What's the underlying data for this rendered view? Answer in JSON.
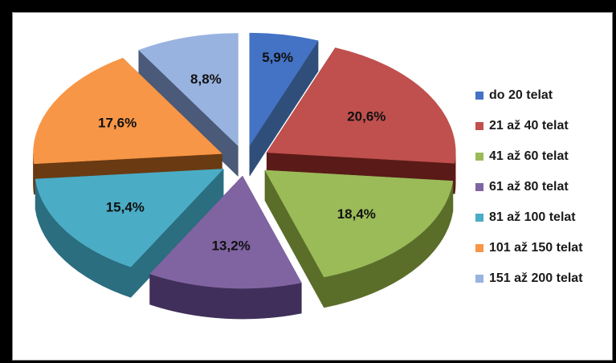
{
  "chart_data": {
    "type": "pie",
    "exploded": true,
    "three_d": true,
    "legend_position": "right",
    "categories": [
      "do 20 telat",
      "21 až 40 telat",
      "41 až 60 telat",
      "61 až 80 telat",
      "81 až 100 telat",
      "101 až 150 telat",
      "151 až 200 telat"
    ],
    "values": [
      5.9,
      20.6,
      18.4,
      13.2,
      15.4,
      17.6,
      8.8
    ],
    "data_labels": [
      "5,9%",
      "20,6%",
      "18,4%",
      "13,2%",
      "15,4%",
      "17,6%",
      "8,8%"
    ],
    "colors": [
      "#4472c4",
      "#c0504d",
      "#9bbb59",
      "#8064a2",
      "#4bacc6",
      "#f79646",
      "#99b3e0"
    ],
    "side_colors": [
      "#2f4f7a",
      "#5a1a18",
      "#5a6e2a",
      "#3f2f5a",
      "#2a6e80",
      "#6a3a12",
      "#4a5a78"
    ]
  }
}
